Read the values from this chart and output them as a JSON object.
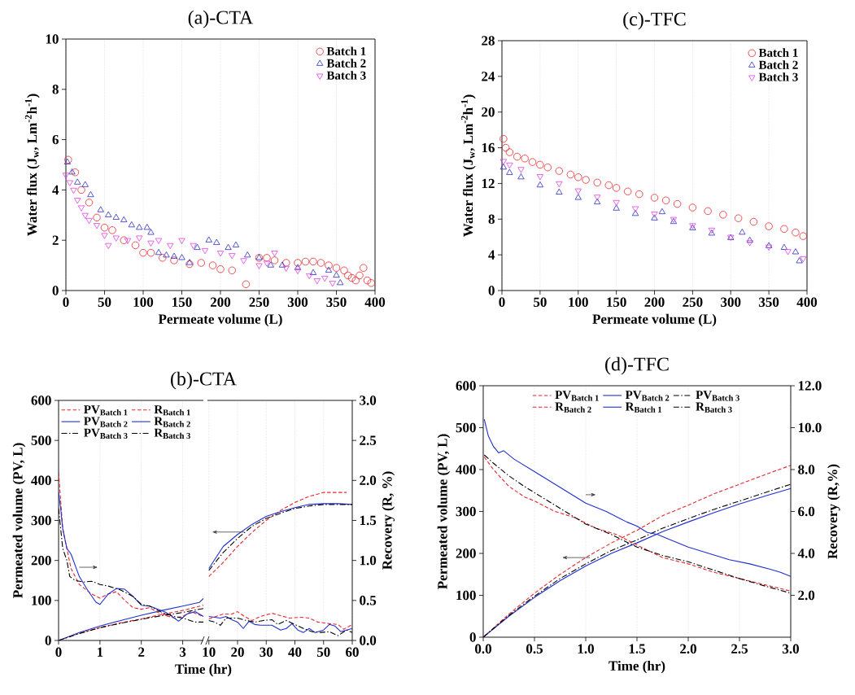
{
  "chart_data": [
    {
      "type": "scatter",
      "title": "(a)-CTA",
      "xlabel": "Permeate volume (L)",
      "ylabel": "Water flux (J$_{w}$, Lm$^{-2}$h$^{-1}$)",
      "xlim": [
        0,
        400
      ],
      "ylim": [
        0,
        10
      ],
      "xticks": [
        0,
        50,
        100,
        150,
        200,
        250,
        300,
        350,
        400
      ],
      "yticks": [
        0,
        2,
        4,
        6,
        8,
        10
      ],
      "grid": "x",
      "legend": "top right",
      "series": [
        {
          "name": "Batch 1",
          "color": "#e8262b",
          "marker": "circle",
          "x": [
            3,
            12,
            20,
            30,
            40,
            50,
            60,
            75,
            90,
            100,
            110,
            125,
            140,
            160,
            175,
            190,
            200,
            215,
            233,
            250,
            260,
            270,
            285,
            300,
            310,
            320,
            330,
            340,
            350,
            360,
            365,
            370,
            375,
            380,
            385,
            390,
            395
          ],
          "values": [
            5.2,
            4.7,
            4.0,
            3.5,
            2.9,
            2.5,
            2.4,
            2.0,
            1.8,
            1.5,
            1.5,
            1.3,
            1.2,
            1.05,
            1.1,
            1.0,
            0.85,
            0.8,
            0.25,
            1.3,
            1.3,
            1.2,
            1.1,
            1.1,
            1.15,
            1.15,
            1.1,
            1.0,
            0.9,
            0.8,
            0.6,
            0.5,
            0.4,
            0.6,
            0.9,
            0.4,
            0.3
          ]
        },
        {
          "name": "Batch 2",
          "color": "#2c2cc0",
          "marker": "triangle",
          "x": [
            2,
            8,
            15,
            25,
            32,
            45,
            55,
            65,
            75,
            85,
            95,
            105,
            110,
            120,
            130,
            140,
            150,
            160,
            170,
            185,
            195,
            210,
            220,
            235,
            250,
            265,
            280,
            300,
            320,
            340,
            350,
            355
          ],
          "values": [
            5.1,
            4.7,
            4.3,
            4.2,
            3.8,
            3.2,
            3.0,
            2.9,
            2.8,
            2.6,
            2.5,
            2.5,
            2.3,
            1.5,
            1.4,
            1.35,
            1.3,
            1.1,
            1.7,
            2.0,
            1.9,
            1.7,
            1.8,
            1.4,
            1.3,
            1.0,
            1.0,
            0.9,
            0.7,
            0.8,
            0.6,
            0.3
          ]
        },
        {
          "name": "Batch 3",
          "color": "#e040e0",
          "marker": "triangle-down",
          "x": [
            0,
            5,
            10,
            15,
            20,
            25,
            30,
            40,
            50,
            55,
            65,
            80,
            95,
            110,
            120,
            135,
            150,
            165,
            180,
            200,
            215,
            230,
            250,
            260,
            270,
            285,
            300,
            315,
            325,
            335,
            345
          ],
          "values": [
            4.6,
            4.3,
            4.0,
            3.6,
            3.3,
            3.0,
            2.8,
            2.6,
            2.2,
            1.8,
            2.1,
            2.0,
            2.1,
            1.9,
            2.0,
            1.8,
            2.0,
            1.8,
            1.6,
            1.5,
            1.4,
            1.2,
            1.0,
            1.1,
            1.5,
            0.9,
            0.8,
            0.6,
            0.4,
            0.5,
            0.3
          ]
        }
      ]
    },
    {
      "type": "scatter",
      "title": "(c)-TFC",
      "xlabel": "Permeate volume (L)",
      "ylabel": "Water flux (J$_{w}$, Lm$^{-2}$h$^{-1}$)",
      "xlim": [
        0,
        400
      ],
      "ylim": [
        0,
        28
      ],
      "xticks": [
        0,
        50,
        100,
        150,
        200,
        250,
        300,
        350,
        400
      ],
      "yticks": [
        0,
        4,
        8,
        12,
        16,
        20,
        24,
        28
      ],
      "grid": "x",
      "legend": "top right",
      "series": [
        {
          "name": "Batch 1",
          "color": "#e8262b",
          "marker": "circle",
          "x": [
            2,
            5,
            10,
            20,
            30,
            40,
            50,
            60,
            75,
            90,
            100,
            110,
            125,
            140,
            150,
            165,
            180,
            200,
            215,
            230,
            250,
            270,
            290,
            310,
            330,
            350,
            370,
            385,
            395
          ],
          "values": [
            17.0,
            16.0,
            15.5,
            15.0,
            14.8,
            14.4,
            14.1,
            13.8,
            13.4,
            13.0,
            12.7,
            12.4,
            12.1,
            11.8,
            11.5,
            11.1,
            10.8,
            10.4,
            10.1,
            9.7,
            9.3,
            8.9,
            8.5,
            8.1,
            7.7,
            7.2,
            6.9,
            6.5,
            6.1
          ]
        },
        {
          "name": "Batch 2",
          "color": "#2c2cc0",
          "marker": "triangle",
          "x": [
            2,
            10,
            25,
            50,
            75,
            100,
            125,
            150,
            175,
            200,
            210,
            225,
            250,
            275,
            300,
            315,
            325,
            350,
            370,
            385,
            390
          ],
          "values": [
            13.8,
            13.2,
            12.7,
            11.8,
            11.0,
            10.4,
            9.9,
            9.2,
            8.6,
            8.1,
            8.8,
            7.7,
            7.0,
            6.4,
            5.9,
            6.5,
            5.6,
            5.0,
            4.8,
            4.3,
            3.3
          ]
        },
        {
          "name": "Batch 3",
          "color": "#e040e0",
          "marker": "triangle-down",
          "x": [
            2,
            10,
            25,
            50,
            75,
            100,
            125,
            150,
            175,
            200,
            225,
            250,
            275,
            300,
            325,
            350,
            375,
            395
          ],
          "values": [
            14.5,
            14.1,
            13.6,
            12.8,
            12.0,
            11.2,
            10.5,
            9.9,
            9.2,
            8.6,
            8.0,
            7.3,
            6.8,
            6.0,
            5.4,
            4.9,
            4.4,
            3.6
          ]
        }
      ]
    },
    {
      "type": "line",
      "title": "(b)-CTA",
      "xlabel": "Time (hr)",
      "ylabel": "Permeated volume (PV, L)",
      "xlim": [
        0,
        3.5
      ],
      "ylim": [
        0,
        600
      ],
      "y2lim": [
        0,
        3
      ],
      "xticks": [
        0,
        1,
        2,
        3
      ],
      "yticks": [
        0,
        100,
        200,
        300,
        400,
        500,
        600
      ],
      "tick_labels": [
        "x",
        "y"
      ],
      "grid": "x",
      "legend": "top left",
      "series": [
        {
          "name": "PV$_{Batch 1}$",
          "color": "#e8262b",
          "line_style": "dashed",
          "x": [
            0,
            0.5,
            1,
            1.5,
            2,
            2.5,
            3,
            3.5
          ],
          "values": [
            0,
            18,
            32,
            44,
            54,
            65,
            75,
            88
          ]
        },
        {
          "name": "R$_{Batch 1}$",
          "color": "#e8262b",
          "line_style": "dashed",
          "axis": "y2",
          "x": [
            0,
            0.05,
            0.1,
            0.2,
            0.3,
            0.5,
            0.8,
            1.0,
            1.2,
            1.4,
            1.6,
            1.8,
            2.0,
            2.2,
            2.4,
            2.6,
            2.8,
            3.0,
            3.2,
            3.5
          ],
          "values": [
            2.1,
            1.75,
            1.4,
            1.15,
            0.9,
            0.7,
            0.58,
            0.53,
            0.58,
            0.61,
            0.5,
            0.41,
            0.39,
            0.41,
            0.35,
            0.31,
            0.28,
            0.3,
            0.36,
            0.3
          ]
        },
        {
          "name": "PV$_{Batch 2}$",
          "color": "#1f2fd0",
          "line_style": "solid",
          "x": [
            0,
            0.5,
            1,
            1.5,
            2,
            2.5,
            3,
            3.4,
            3.5
          ],
          "values": [
            0,
            20,
            36,
            50,
            63,
            75,
            86,
            95,
            105
          ]
        },
        {
          "name": "R$_{Batch 2}$",
          "color": "#1f2fd0",
          "line_style": "solid",
          "axis": "y2",
          "x": [
            0,
            0.05,
            0.1,
            0.2,
            0.3,
            0.5,
            0.7,
            0.9,
            1.0,
            1.2,
            1.4,
            1.6,
            1.8,
            2.0,
            2.2,
            2.4,
            2.6,
            2.8,
            2.9,
            3.1,
            3.3,
            3.5
          ],
          "values": [
            1.85,
            1.65,
            1.4,
            1.15,
            1.08,
            0.8,
            0.63,
            0.48,
            0.45,
            0.58,
            0.65,
            0.64,
            0.55,
            0.44,
            0.43,
            0.39,
            0.35,
            0.28,
            0.24,
            0.33,
            0.36,
            0.3
          ]
        },
        {
          "name": "PV$_{Batch 3}$",
          "color": "#000000",
          "line_style": "dashdot",
          "x": [
            0,
            0.5,
            1,
            1.5,
            2,
            2.5,
            3,
            3.5
          ],
          "values": [
            0,
            17,
            32,
            43,
            53,
            62,
            70,
            80
          ]
        },
        {
          "name": "R$_{Batch 3}$",
          "color": "#000000",
          "line_style": "dashdot",
          "axis": "y2",
          "x": [
            0,
            0.1,
            0.2,
            0.27,
            0.4,
            0.6,
            0.8,
            1.0,
            1.2,
            1.5,
            1.8,
            2.0,
            2.2,
            2.5,
            2.8,
            3.0,
            3.3,
            3.5
          ],
          "values": [
            1.65,
            1.15,
            1.0,
            0.8,
            0.75,
            0.73,
            0.74,
            0.7,
            0.68,
            0.63,
            0.55,
            0.45,
            0.43,
            0.35,
            0.3,
            0.28,
            0.23,
            0.23
          ]
        }
      ]
    },
    {
      "type": "line",
      "y2label": "Recovery (R, %)",
      "xlim": [
        9.5,
        60
      ],
      "ylim": [
        0,
        600
      ],
      "y2lim": [
        0,
        3
      ],
      "xticks": [
        10,
        20,
        30,
        40,
        50,
        60
      ],
      "y2ticks": [
        {
          "value": 0,
          "label": "0.0"
        },
        {
          "value": 0.5,
          "label": "0.5"
        },
        {
          "value": 1,
          "label": "1.0"
        },
        {
          "value": 1.5,
          "label": "1.5"
        },
        {
          "value": 2,
          "label": "2.0"
        },
        {
          "value": 2.5,
          "label": "2.5"
        },
        {
          "value": 3,
          "label": "3.0"
        }
      ],
      "tick_labels": [
        "x",
        "y2"
      ],
      "grid": "x",
      "series": [
        {
          "color": "#e8262b",
          "line_style": "dashed",
          "x": [
            10,
            15,
            20,
            25,
            30,
            35,
            40,
            45,
            50,
            55,
            58
          ],
          "values": [
            160,
            195,
            235,
            270,
            300,
            325,
            345,
            360,
            370,
            370,
            370
          ]
        },
        {
          "color": "#e8262b",
          "line_style": "dashed",
          "axis": "y2",
          "x": [
            10,
            15,
            18,
            20,
            22,
            25,
            28,
            32,
            35,
            38,
            42,
            45,
            48,
            52,
            55,
            57,
            60
          ],
          "values": [
            0.27,
            0.33,
            0.33,
            0.36,
            0.31,
            0.25,
            0.3,
            0.34,
            0.31,
            0.28,
            0.29,
            0.28,
            0.23,
            0.21,
            0.2,
            0.14,
            0.2
          ]
        },
        {
          "color": "#1f2fd0",
          "line_style": "solid",
          "x": [
            10,
            15,
            20,
            25,
            30,
            35,
            40,
            45,
            50,
            55,
            60
          ],
          "values": [
            180,
            235,
            265,
            290,
            310,
            322,
            332,
            340,
            342,
            342,
            340
          ]
        },
        {
          "color": "#1f2fd0",
          "line_style": "solid",
          "axis": "y2",
          "x": [
            10,
            14,
            16,
            18,
            20,
            22,
            24,
            26,
            28,
            32,
            35,
            37,
            39,
            41,
            43,
            45,
            47,
            50,
            52,
            54,
            56,
            58,
            60
          ],
          "values": [
            0.3,
            0.28,
            0.3,
            0.26,
            0.23,
            0.15,
            0.24,
            0.2,
            0.19,
            0.19,
            0.13,
            0.15,
            0.21,
            0.13,
            0.1,
            0.15,
            0.1,
            0.13,
            0.2,
            0.18,
            0.11,
            0.13,
            0.15
          ]
        },
        {
          "color": "#000000",
          "line_style": "dashdot",
          "x": [
            10,
            15,
            20,
            25,
            30,
            35,
            40,
            45,
            50,
            55,
            60
          ],
          "values": [
            175,
            220,
            255,
            285,
            305,
            318,
            330,
            336,
            340,
            340,
            340
          ]
        },
        {
          "color": "#000000",
          "line_style": "dashdot",
          "axis": "y2",
          "x": [
            10,
            12,
            14,
            16,
            20,
            23,
            26,
            29,
            32,
            34,
            37,
            40,
            43,
            46,
            49,
            52,
            55,
            58,
            60
          ],
          "values": [
            0.25,
            0.23,
            0.19,
            0.28,
            0.28,
            0.25,
            0.23,
            0.25,
            0.26,
            0.2,
            0.25,
            0.2,
            0.15,
            0.11,
            0.1,
            0.11,
            0.06,
            0.13,
            0.1
          ]
        }
      ]
    },
    {
      "type": "line",
      "title": "(d)-TFC",
      "xlabel": "Time (hr)",
      "ylabel": "Permeated volume (PV, L)",
      "y2label": "Recovery (R,%)",
      "xlim": [
        0,
        3
      ],
      "ylim": [
        0,
        600
      ],
      "y2lim": [
        0,
        12
      ],
      "xticks": [
        {
          "value": 0,
          "label": "0.0"
        },
        {
          "value": 0.5,
          "label": "0.5"
        },
        {
          "value": 1,
          "label": "1.0"
        },
        {
          "value": 1.5,
          "label": "1.5"
        },
        {
          "value": 2,
          "label": "2.0"
        },
        {
          "value": 2.5,
          "label": "2.5"
        },
        {
          "value": 3,
          "label": "3.0"
        }
      ],
      "yticks": [
        0,
        100,
        200,
        300,
        400,
        500,
        600
      ],
      "y2ticks": [
        {
          "value": 2,
          "label": "2.0"
        },
        {
          "value": 4,
          "label": "4.0"
        },
        {
          "value": 6,
          "label": "6.0"
        },
        {
          "value": 8,
          "label": "8.0"
        },
        {
          "value": 10,
          "label": "10.0"
        },
        {
          "value": 12,
          "label": "12.0"
        }
      ],
      "grid": "x",
      "legend": "top",
      "series": [
        {
          "name": "PV$_{Batch 1}$",
          "color": "#e8262b",
          "line_style": "dashed",
          "x": [
            0,
            0.25,
            0.5,
            0.75,
            1,
            1.25,
            1.5,
            1.75,
            2,
            2.25,
            2.5,
            2.75,
            3
          ],
          "values": [
            0,
            55,
            105,
            150,
            190,
            225,
            255,
            290,
            315,
            342,
            365,
            388,
            410
          ]
        },
        {
          "name": "PV$_{Batch 2}$",
          "color": "#1f2fd0",
          "line_style": "solid",
          "x": [
            0,
            0.25,
            0.5,
            0.75,
            1,
            1.25,
            1.5,
            1.75,
            2,
            2.25,
            2.5,
            2.75,
            3
          ],
          "values": [
            0,
            50,
            95,
            135,
            170,
            200,
            225,
            252,
            275,
            297,
            318,
            337,
            355
          ]
        },
        {
          "name": "PV$_{Batch 3}$",
          "color": "#000000",
          "line_style": "dashdot",
          "x": [
            0,
            0.25,
            0.5,
            0.75,
            1,
            1.25,
            1.5,
            1.75,
            2,
            2.25,
            2.5,
            2.75,
            3
          ],
          "values": [
            0,
            52,
            98,
            140,
            175,
            207,
            232,
            260,
            283,
            305,
            325,
            345,
            365
          ]
        },
        {
          "name": "R$_{Batch 2}$",
          "color": "#e8262b",
          "line_style": "dashed",
          "axis": "y2",
          "x": [
            0.01,
            0.1,
            0.25,
            0.4,
            0.5,
            0.7,
            0.9,
            1.1,
            1.3,
            1.5,
            1.75,
            2.0,
            2.25,
            2.5,
            2.75,
            3.0
          ],
          "values": [
            8.6,
            8.0,
            7.2,
            6.7,
            6.5,
            6.0,
            5.7,
            5.2,
            4.9,
            4.4,
            3.8,
            3.5,
            3.1,
            2.8,
            2.5,
            2.2
          ]
        },
        {
          "name": "R$_{Batch 1}$",
          "color": "#1f2fd0",
          "line_style": "solid",
          "axis": "y2",
          "x": [
            0.01,
            0.05,
            0.1,
            0.15,
            0.2,
            0.3,
            0.5,
            0.7,
            0.9,
            1.0,
            1.2,
            1.4,
            1.5,
            1.6,
            1.7,
            1.8,
            2.0,
            2.2,
            2.4,
            2.6,
            2.8,
            2.9,
            3.0
          ],
          "values": [
            10.4,
            9.6,
            9.1,
            8.8,
            8.9,
            8.5,
            7.9,
            7.3,
            6.7,
            6.4,
            6.0,
            5.5,
            5.3,
            5.0,
            4.9,
            4.7,
            4.3,
            4.0,
            3.7,
            3.5,
            3.24,
            3.1,
            2.9
          ]
        },
        {
          "name": "R$_{Batch 3}$",
          "color": "#000000",
          "line_style": "dashdot",
          "axis": "y2",
          "x": [
            0.01,
            0.1,
            0.25,
            0.4,
            0.6,
            0.8,
            1.0,
            1.25,
            1.5,
            1.75,
            2.0,
            2.25,
            2.5,
            2.75,
            3.0
          ],
          "values": [
            8.7,
            8.3,
            7.7,
            7.2,
            6.6,
            6.0,
            5.4,
            4.9,
            4.3,
            3.9,
            3.6,
            3.2,
            2.8,
            2.44,
            2.1
          ]
        }
      ]
    }
  ]
}
